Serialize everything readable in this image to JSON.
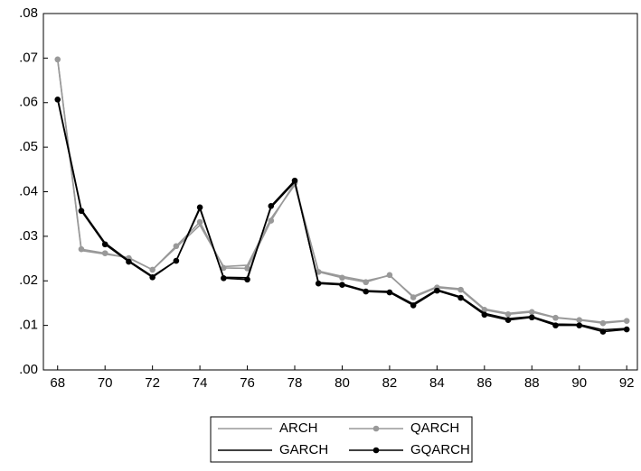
{
  "chart_data": {
    "type": "line",
    "x": [
      68,
      69,
      70,
      71,
      72,
      73,
      74,
      75,
      76,
      77,
      78,
      79,
      80,
      81,
      82,
      83,
      84,
      85,
      86,
      87,
      88,
      89,
      90,
      91,
      92
    ],
    "series": [
      {
        "name": "ARCH",
        "color": "#999999",
        "marker": false,
        "values": [
          0.0697,
          0.0268,
          0.026,
          0.0252,
          0.0225,
          0.0275,
          0.0325,
          0.0232,
          0.0235,
          0.034,
          0.0415,
          0.0222,
          0.021,
          0.02,
          0.0212,
          0.0165,
          0.0187,
          0.0182,
          0.0137,
          0.0127,
          0.0132,
          0.0118,
          0.0113,
          0.0107,
          0.0111
        ]
      },
      {
        "name": "QARCH",
        "color": "#999999",
        "marker": true,
        "values": [
          0.0697,
          0.0271,
          0.0262,
          0.0251,
          0.0225,
          0.0278,
          0.0332,
          0.0229,
          0.0228,
          0.0335,
          0.042,
          0.022,
          0.0207,
          0.0197,
          0.0213,
          0.0163,
          0.0185,
          0.018,
          0.0135,
          0.0125,
          0.013,
          0.0117,
          0.0112,
          0.0105,
          0.011
        ]
      },
      {
        "name": "GARCH",
        "color": "#000000",
        "marker": false,
        "values": [
          0.061,
          0.036,
          0.0285,
          0.0245,
          0.021,
          0.0245,
          0.0362,
          0.0208,
          0.0207,
          0.0365,
          0.0422,
          0.0196,
          0.0193,
          0.0178,
          0.0176,
          0.0148,
          0.018,
          0.0164,
          0.0127,
          0.0115,
          0.012,
          0.0103,
          0.0102,
          0.009,
          0.0093
        ]
      },
      {
        "name": "GQARCH",
        "color": "#000000",
        "marker": true,
        "values": [
          0.0607,
          0.0357,
          0.0282,
          0.0243,
          0.0208,
          0.0245,
          0.0365,
          0.0206,
          0.0203,
          0.0368,
          0.0425,
          0.0194,
          0.0191,
          0.0176,
          0.0174,
          0.0145,
          0.0178,
          0.0162,
          0.0124,
          0.0112,
          0.0118,
          0.01,
          0.01,
          0.0086,
          0.0091
        ]
      }
    ],
    "xlim": [
      67.4,
      92.45
    ],
    "xticks": [
      68,
      70,
      72,
      74,
      76,
      78,
      80,
      82,
      84,
      86,
      88,
      90,
      92
    ],
    "ylim": [
      0,
      0.08
    ],
    "yticks": [
      {
        "value": 0,
        "label": ".00"
      },
      {
        "value": 0.01,
        "label": ".01"
      },
      {
        "value": 0.02,
        "label": ".02"
      },
      {
        "value": 0.03,
        "label": ".03"
      },
      {
        "value": 0.04,
        "label": ".04"
      },
      {
        "value": 0.05,
        "label": ".05"
      },
      {
        "value": 0.06,
        "label": ".06"
      },
      {
        "value": 0.07,
        "label": ".07"
      },
      {
        "value": 0.08,
        "label": ".08"
      }
    ],
    "legend": "bottom"
  }
}
